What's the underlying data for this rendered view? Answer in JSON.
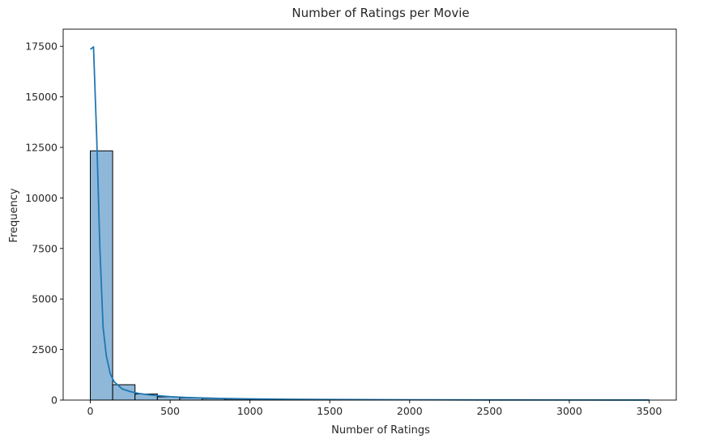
{
  "chart_data": {
    "type": "bar",
    "subtype": "histogram-with-kde",
    "title": "Number of Ratings per Movie",
    "xlabel": "Number of Ratings",
    "ylabel": "Frequency",
    "xlim": [
      -170,
      3670
    ],
    "ylim": [
      0,
      18350
    ],
    "x_ticks": [
      0,
      500,
      1000,
      1500,
      2000,
      2500,
      3000,
      3500
    ],
    "y_ticks": [
      0,
      2500,
      5000,
      7500,
      10000,
      12500,
      15000,
      17500
    ],
    "bin_edges": [
      0,
      140,
      280,
      420,
      560,
      700,
      840,
      980,
      1120,
      1260,
      1400,
      1540,
      1680,
      1820,
      1960,
      2100,
      2240,
      2380,
      2520,
      2660,
      2800,
      2940,
      3080,
      3220,
      3360,
      3500
    ],
    "values": [
      12330,
      760,
      300,
      160,
      110,
      75,
      50,
      40,
      30,
      25,
      20,
      15,
      12,
      10,
      8,
      7,
      6,
      5,
      4,
      3,
      3,
      2,
      2,
      2,
      1
    ],
    "kde": {
      "x": [
        0,
        20,
        40,
        60,
        80,
        100,
        125,
        150,
        200,
        250,
        300,
        400,
        500,
        600,
        800,
        1000,
        1250,
        1500,
        2000,
        2500,
        3000,
        3500
      ],
      "y": [
        17350,
        17470,
        13000,
        7500,
        3600,
        2200,
        1300,
        900,
        550,
        420,
        330,
        230,
        170,
        130,
        85,
        60,
        40,
        28,
        15,
        8,
        4,
        2
      ]
    },
    "colors": {
      "bar_fill": "#8fb8d8",
      "bar_edge": "#000000",
      "kde_line": "#1f77b4"
    },
    "grid": false,
    "legend": "none"
  }
}
